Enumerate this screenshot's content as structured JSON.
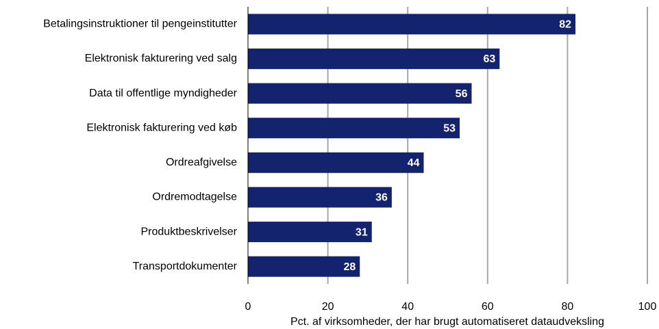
{
  "chart_data": {
    "type": "bar",
    "orientation": "horizontal",
    "categories": [
      "Betalingsinstruktioner til pengeinstitutter",
      "Elektronisk fakturering ved salg",
      "Data til offentlige myndigheder",
      "Elektronisk fakturering ved køb",
      "Ordreafgivelse",
      "Ordremodtagelse",
      "Produktbeskrivelser",
      "Transportdokumenter"
    ],
    "values": [
      82,
      63,
      56,
      53,
      44,
      36,
      31,
      28
    ],
    "color": "#14236e",
    "xlabel": "Pct. af virksomheder, der har brugt automatiseret dataudveksling",
    "xlim": [
      0,
      100
    ],
    "xticks": [
      0,
      20,
      40,
      60,
      80,
      100
    ],
    "grid": true
  }
}
